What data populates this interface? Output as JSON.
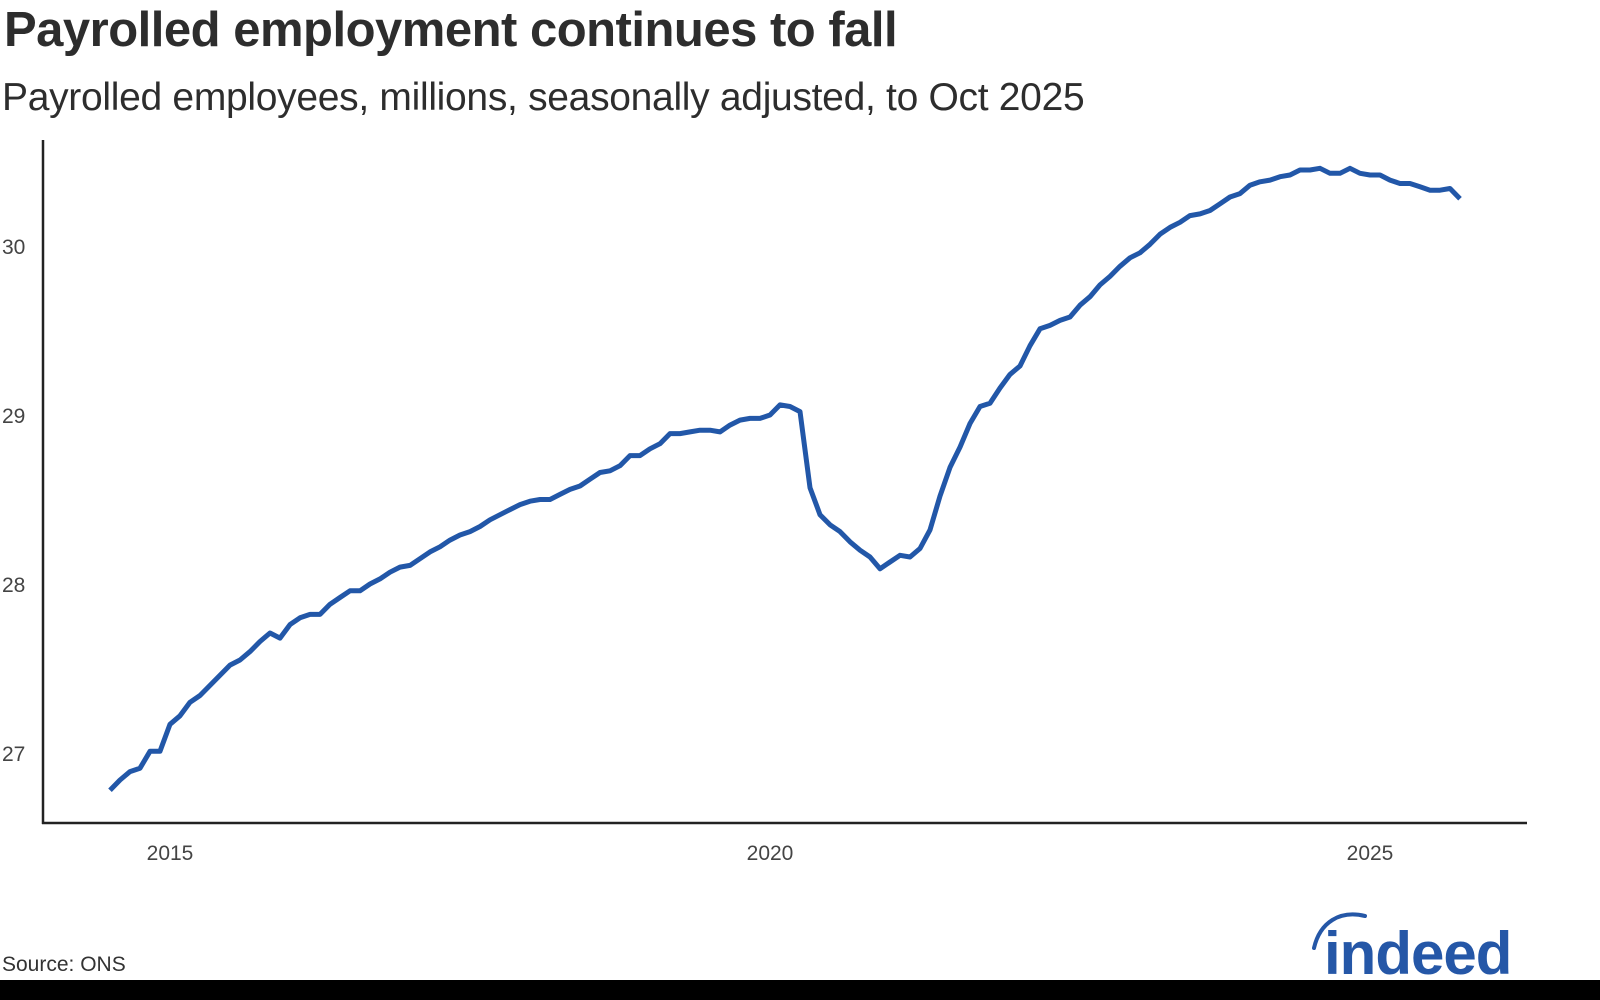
{
  "header": {
    "title": "Payrolled employment continues to fall",
    "subtitle": "Payrolled employees, millions, seasonally adjusted, to Oct 2025"
  },
  "footer": {
    "source": "Source: ONS",
    "logo_text": "indeed",
    "logo_color": "#2557a7"
  },
  "colors": {
    "line": "#2257a8",
    "axis": "#222222",
    "text": "#2d2d2d",
    "bottom_bar": "#000000"
  },
  "chart_data": {
    "type": "line",
    "title": "Payrolled employment continues to fall",
    "subtitle": "Payrolled employees, millions, seasonally adjusted, to Oct 2025",
    "xlabel": "",
    "ylabel": "",
    "source": "Source: ONS",
    "grid": false,
    "legend": null,
    "ylim": [
      26.58,
      30.62
    ],
    "yticks": [
      27,
      28,
      29,
      30
    ],
    "xticks": [
      "2015",
      "2020",
      "2025"
    ],
    "x_start": "2014-07",
    "x_end": "2025-10",
    "frequency": "monthly",
    "series": [
      {
        "name": "Payrolled employees (millions)",
        "color": "#2257a8",
        "values": [
          26.78,
          26.84,
          26.89,
          26.91,
          27.01,
          27.01,
          27.17,
          27.22,
          27.3,
          27.34,
          27.4,
          27.46,
          27.52,
          27.55,
          27.6,
          27.66,
          27.71,
          27.68,
          27.76,
          27.8,
          27.82,
          27.82,
          27.88,
          27.92,
          27.96,
          27.96,
          28.0,
          28.03,
          28.07,
          28.1,
          28.11,
          28.15,
          28.19,
          28.22,
          28.26,
          28.29,
          28.31,
          28.34,
          28.38,
          28.41,
          28.44,
          28.47,
          28.49,
          28.5,
          28.5,
          28.53,
          28.56,
          28.58,
          28.62,
          28.66,
          28.67,
          28.7,
          28.76,
          28.76,
          28.8,
          28.83,
          28.89,
          28.89,
          28.9,
          28.91,
          28.91,
          28.9,
          28.94,
          28.97,
          28.98,
          28.98,
          29.0,
          29.06,
          29.05,
          29.02,
          28.57,
          28.41,
          28.35,
          28.31,
          28.25,
          28.2,
          28.16,
          28.09,
          28.13,
          28.17,
          28.16,
          28.21,
          28.32,
          28.52,
          28.69,
          28.81,
          28.95,
          29.05,
          29.07,
          29.16,
          29.24,
          29.29,
          29.41,
          29.51,
          29.53,
          29.56,
          29.58,
          29.65,
          29.7,
          29.77,
          29.82,
          29.88,
          29.93,
          29.96,
          30.01,
          30.07,
          30.11,
          30.14,
          30.18,
          30.19,
          30.21,
          30.25,
          30.29,
          30.31,
          30.36,
          30.38,
          30.39,
          30.41,
          30.42,
          30.45,
          30.45,
          30.46,
          30.43,
          30.43,
          30.46,
          30.43,
          30.42,
          30.42,
          30.39,
          30.37,
          30.37,
          30.35,
          30.33,
          30.33,
          30.34,
          30.28
        ]
      }
    ]
  }
}
